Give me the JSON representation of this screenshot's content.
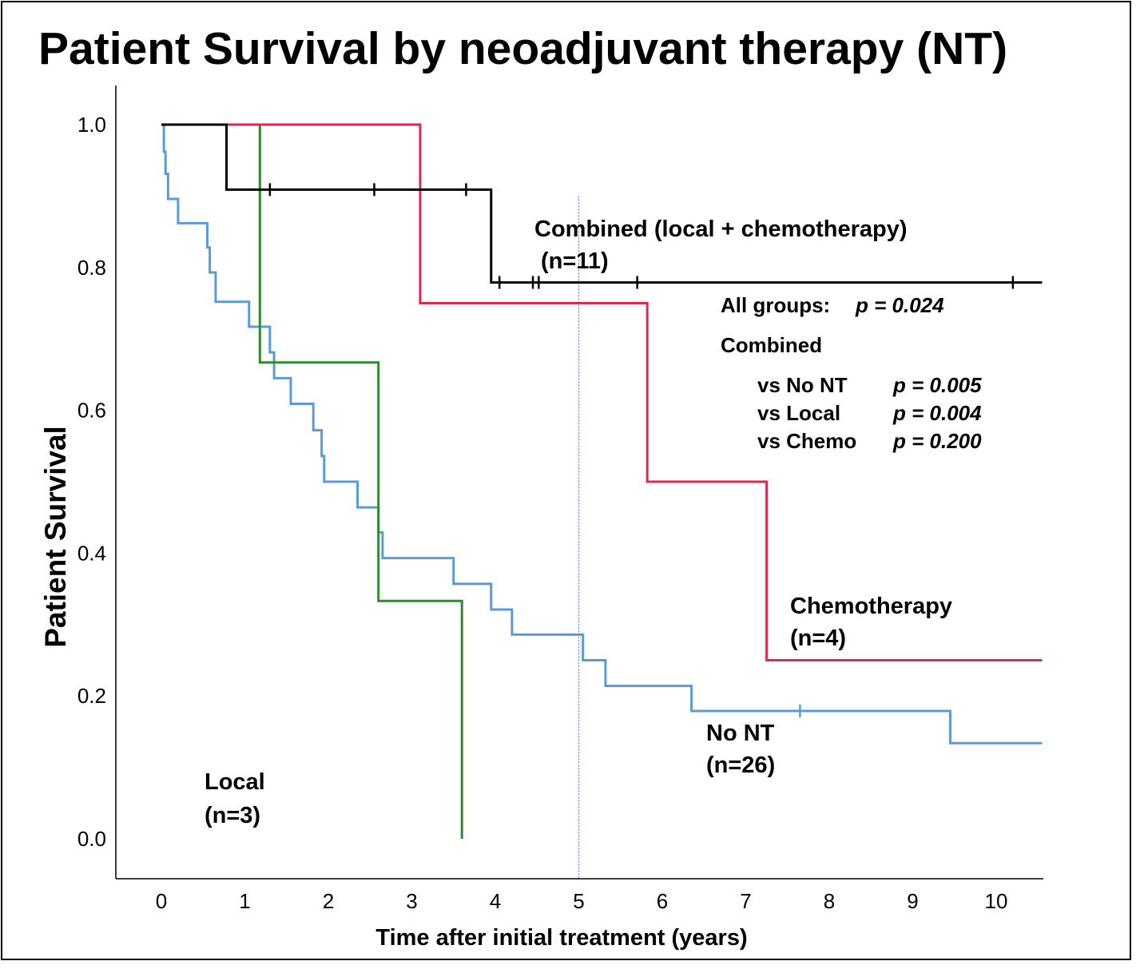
{
  "chart_data": {
    "type": "line",
    "step": true,
    "title": "Patient Survival by neoadjuvant therapy (NT)",
    "xlabel": "Time after initial treatment (years)",
    "ylabel": "Patient Survival",
    "xlim": [
      -0.5,
      10.5
    ],
    "ylim": [
      -0.05,
      1.05
    ],
    "xticks": [
      "0",
      "1",
      "2",
      "3",
      "4",
      "5",
      "6",
      "7",
      "8",
      "9",
      "10"
    ],
    "yticks": [
      "0.0",
      "0.2",
      "0.4",
      "0.6",
      "0.8",
      "1.0"
    ],
    "grid": false,
    "reference_line": {
      "x": 5,
      "style": "dotted",
      "color": "#4472c4"
    },
    "series": [
      {
        "name": "No NT",
        "label": "No NT",
        "n_label": "(n=26)",
        "color": "#5b9bd5",
        "points": [
          [
            0,
            1.0
          ],
          [
            0.03,
            0.962
          ],
          [
            0.05,
            0.931
          ],
          [
            0.08,
            0.896
          ],
          [
            0.2,
            0.862
          ],
          [
            0.55,
            0.828
          ],
          [
            0.58,
            0.793
          ],
          [
            0.65,
            0.752
          ],
          [
            1.05,
            0.717
          ],
          [
            1.3,
            0.681
          ],
          [
            1.35,
            0.645
          ],
          [
            1.55,
            0.609
          ],
          [
            1.82,
            0.572
          ],
          [
            1.92,
            0.536
          ],
          [
            1.95,
            0.5
          ],
          [
            2.35,
            0.464
          ],
          [
            2.6,
            0.429
          ],
          [
            2.65,
            0.393
          ],
          [
            3.5,
            0.357
          ],
          [
            3.95,
            0.321
          ],
          [
            4.2,
            0.286
          ],
          [
            5.05,
            0.25
          ],
          [
            5.32,
            0.214
          ],
          [
            6.35,
            0.179
          ],
          [
            9.45,
            0.134
          ],
          [
            10.55,
            0.134
          ]
        ],
        "censored": [
          7.65
        ]
      },
      {
        "name": "Local",
        "label": "Local",
        "n_label": "(n=3)",
        "color": "#2e8b2e",
        "points": [
          [
            0,
            1.0
          ],
          [
            1.18,
            0.667
          ],
          [
            2.6,
            0.333
          ],
          [
            3.6,
            0.0
          ]
        ],
        "censored": []
      },
      {
        "name": "Chemotherapy",
        "label": "Chemotherapy",
        "n_label": "(n=4)",
        "color": "#e0284e",
        "points": [
          [
            0,
            1.0
          ],
          [
            3.1,
            0.75
          ],
          [
            5.82,
            0.5
          ],
          [
            7.25,
            0.25
          ],
          [
            10.55,
            0.25
          ]
        ],
        "censored": []
      },
      {
        "name": "Combined (local + chemotherapy)",
        "label": "Combined (local + chemotherapy)",
        "n_label": "(n=11)",
        "color": "#000000",
        "points": [
          [
            0,
            1.0
          ],
          [
            0.78,
            0.909
          ],
          [
            3.95,
            0.779
          ],
          [
            10.55,
            0.779
          ]
        ],
        "censored": [
          1.3,
          2.55,
          3.65,
          4.05,
          4.45,
          4.52,
          5.7,
          10.2
        ]
      }
    ],
    "stats": {
      "all_groups_label": "All groups:",
      "all_groups_p": "p = 0.024",
      "combined_label": "Combined",
      "comparisons": [
        {
          "label": "vs No NT",
          "p": "p = 0.005"
        },
        {
          "label": "vs Local",
          "p": "p = 0.004"
        },
        {
          "label": "vs Chemo",
          "p": "p = 0.200"
        }
      ]
    }
  }
}
